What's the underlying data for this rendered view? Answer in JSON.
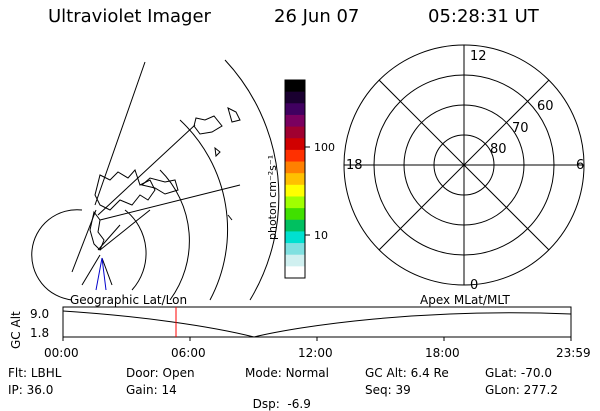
{
  "header": {
    "instrument": "Ultraviolet Imager",
    "date": "26 Jun 07",
    "time": "05:28:31 UT"
  },
  "left_panel": {
    "label": "Geographic Lat/Lon"
  },
  "right_panel": {
    "label": "Apex MLat/MLT",
    "mlt_labels": [
      "12",
      "18",
      "6",
      "0"
    ],
    "mlat_labels": [
      "60",
      "70",
      "80"
    ]
  },
  "colorbar": {
    "unit_label": "photon cm⁻²s⁻¹",
    "ticks": [
      "100",
      "10"
    ],
    "scale": "log",
    "colors": [
      "#000000",
      "#1a0030",
      "#400060",
      "#7a0060",
      "#a00030",
      "#d00000",
      "#ff3000",
      "#ff8000",
      "#ffc000",
      "#ffff00",
      "#a0ff00",
      "#40e000",
      "#00c060",
      "#00e0d0",
      "#80e0e0",
      "#d0f0f0",
      "#ffffff"
    ]
  },
  "timeline": {
    "axis_label": "GC Alt",
    "y_ticks": [
      "9.0",
      "1.8"
    ],
    "x_ticks": [
      "00:00",
      "06:00",
      "12:00",
      "18:00",
      "23:59"
    ],
    "marker_color": "#ff0000"
  },
  "status": {
    "row1": [
      {
        "key": "Flt:",
        "val": "LBHL"
      },
      {
        "key": "Door:",
        "val": "Open"
      },
      {
        "key": "Mode:",
        "val": "Normal"
      },
      {
        "key": "GC Alt:",
        "val": "6.4 Re"
      },
      {
        "key": "GLat:",
        "val": "-70.0"
      }
    ],
    "row2": [
      {
        "key": "IP:",
        "val": "36.0"
      },
      {
        "key": "Gain:",
        "val": "14"
      },
      {
        "key": "Dsp:",
        "val": "  -6.9"
      },
      {
        "key": "Seq:",
        "val": "39"
      },
      {
        "key": "GLon:",
        "val": "277.2"
      }
    ]
  }
}
